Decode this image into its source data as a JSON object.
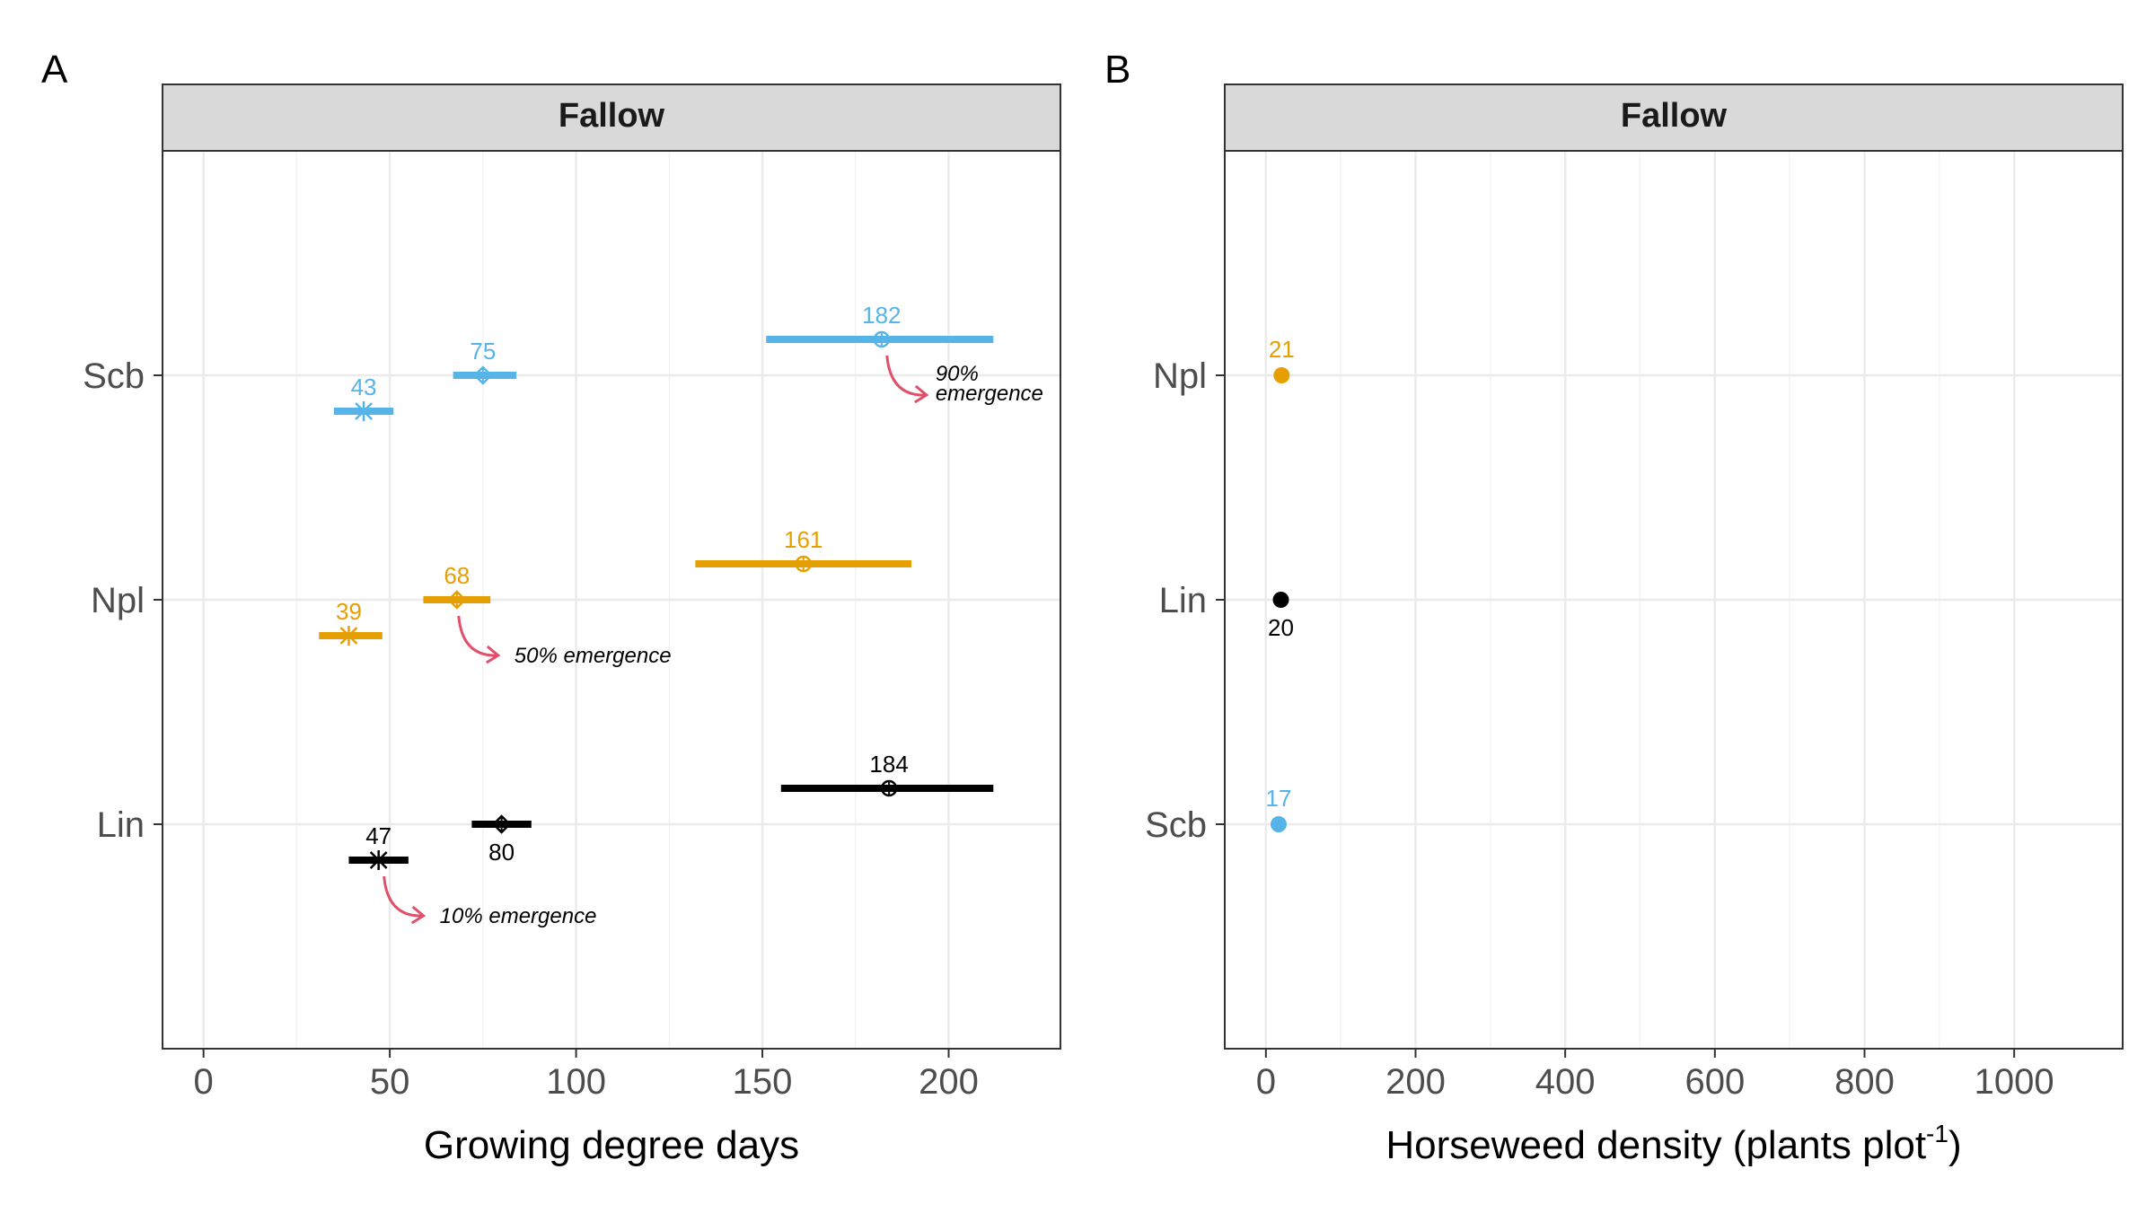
{
  "colors": {
    "Scb": "#56B4E9",
    "Npl": "#E69F00",
    "Lin": "#000000",
    "arrow": "#E0506A"
  },
  "chart_data": [
    {
      "type": "interval-dot",
      "panel": "A",
      "strip": "Fallow",
      "xlabel": "Growing degree days",
      "xlim": [
        -11,
        230
      ],
      "xticks": [
        0,
        50,
        100,
        150,
        200
      ],
      "categories": [
        "Lin",
        "Npl",
        "Scb"
      ],
      "series": [
        {
          "name": "10% emergence",
          "marker": "asterisk",
          "points": [
            {
              "cat": "Lin",
              "x": 47,
              "low": 39,
              "high": 55,
              "label": "47"
            },
            {
              "cat": "Npl",
              "x": 39,
              "low": 31,
              "high": 48,
              "label": "39"
            },
            {
              "cat": "Scb",
              "x": 43,
              "low": 35,
              "high": 51,
              "label": "43"
            }
          ]
        },
        {
          "name": "50% emergence",
          "marker": "diamond",
          "points": [
            {
              "cat": "Lin",
              "x": 80,
              "low": 72,
              "high": 88,
              "label": "80"
            },
            {
              "cat": "Npl",
              "x": 68,
              "low": 59,
              "high": 77,
              "label": "68"
            },
            {
              "cat": "Scb",
              "x": 75,
              "low": 67,
              "high": 84,
              "label": "75"
            }
          ]
        },
        {
          "name": "90% emergence",
          "marker": "circle-plus",
          "points": [
            {
              "cat": "Lin",
              "x": 184,
              "low": 155,
              "high": 212,
              "label": "184"
            },
            {
              "cat": "Npl",
              "x": 161,
              "low": 132,
              "high": 190,
              "label": "161"
            },
            {
              "cat": "Scb",
              "x": 182,
              "low": 151,
              "high": 212,
              "label": "182"
            }
          ]
        }
      ],
      "annotations": [
        {
          "text_lines": [
            "10% emergence"
          ],
          "series": "10% emergence"
        },
        {
          "text_lines": [
            "50% emergence"
          ],
          "series": "50% emergence"
        },
        {
          "text_lines": [
            "90%",
            "emergence"
          ],
          "series": "90% emergence"
        }
      ]
    },
    {
      "type": "scatter",
      "panel": "B",
      "strip": "Fallow",
      "xlabel_main": "Horseweed density (plants plot",
      "xlabel_sup": "-1",
      "xlabel_end": ")",
      "xlim": [
        -55,
        1145
      ],
      "xticks": [
        0,
        200,
        400,
        600,
        800,
        1000
      ],
      "categories": [
        "Scb",
        "Lin",
        "Npl"
      ],
      "points": [
        {
          "cat": "Scb",
          "x": 17,
          "label": "17"
        },
        {
          "cat": "Lin",
          "x": 20,
          "label": "20"
        },
        {
          "cat": "Npl",
          "x": 21,
          "label": "21"
        }
      ]
    }
  ]
}
